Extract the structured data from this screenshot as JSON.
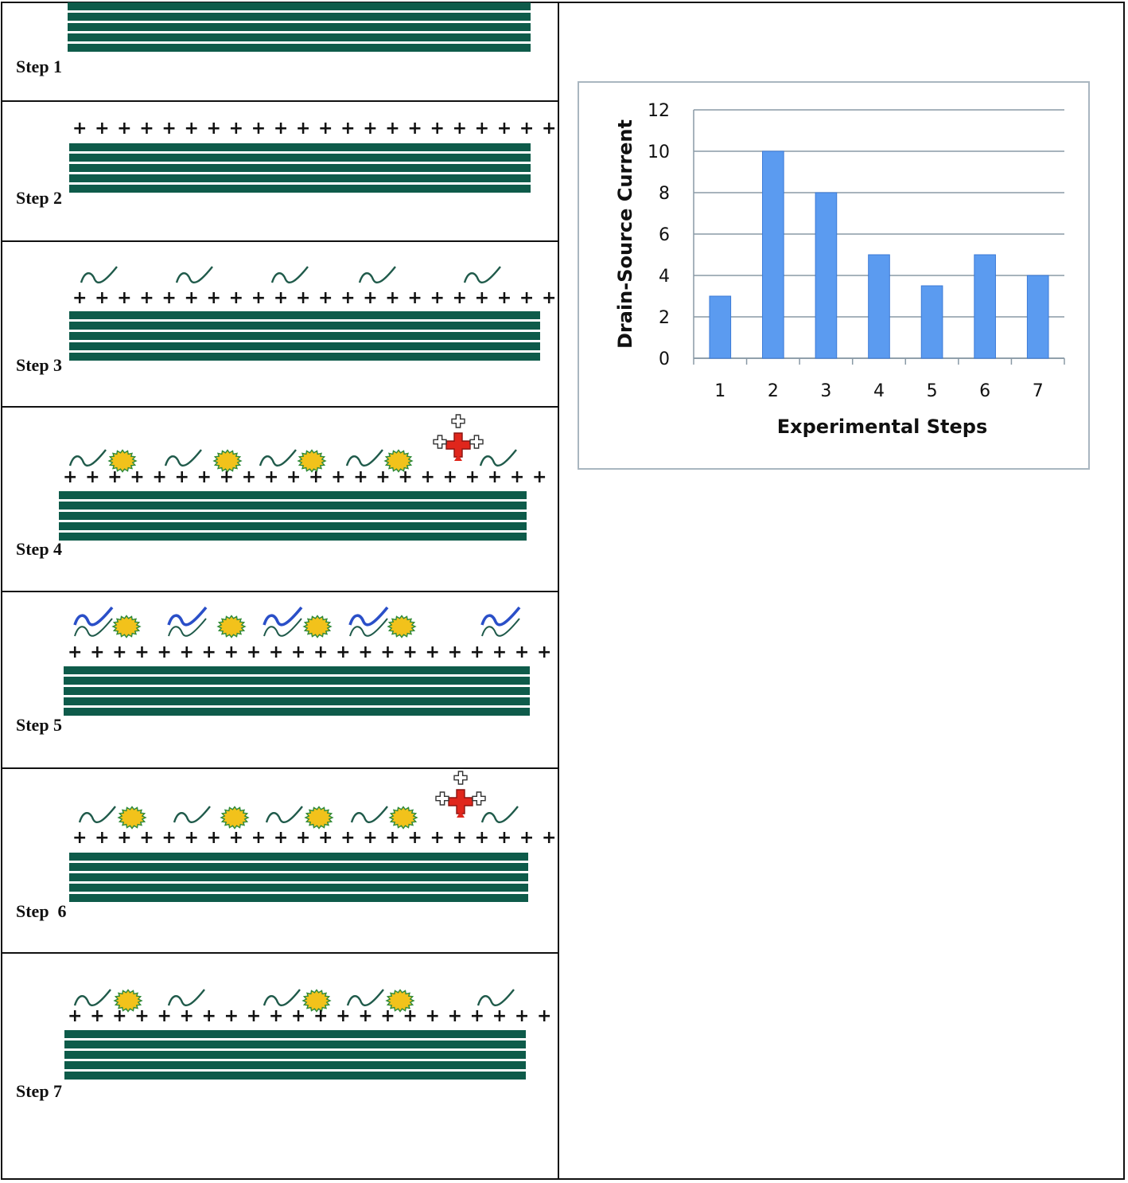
{
  "steps": [
    {
      "label": "Step 1",
      "layers": 5,
      "pluses": 0,
      "items": []
    },
    {
      "label": "Step 2",
      "layers": 5,
      "pluses": 22,
      "items": []
    },
    {
      "label": "Step 3",
      "layers": 5,
      "pluses": 22,
      "items": [
        "green-wave",
        "green-wave",
        "green-wave",
        "green-wave",
        "green-wave"
      ]
    },
    {
      "label": "Step 4",
      "layers": 5,
      "pluses": 22,
      "items": [
        "green-wave",
        "yellow-particle",
        "green-wave",
        "yellow-particle",
        "green-wave",
        "yellow-particle",
        "green-wave",
        "yellow-particle",
        "red-cross",
        "green-wave"
      ]
    },
    {
      "label": "Step 5",
      "layers": 5,
      "pluses": 22,
      "items": [
        "blue-double-wave",
        "yellow-particle",
        "blue-double-wave",
        "yellow-particle",
        "blue-double-wave",
        "yellow-particle",
        "blue-double-wave",
        "yellow-particle",
        "blue-double-wave"
      ]
    },
    {
      "label": "Step  6",
      "layers": 5,
      "pluses": 22,
      "items": [
        "green-wave",
        "yellow-particle",
        "green-wave",
        "yellow-particle",
        "green-wave",
        "yellow-particle",
        "green-wave",
        "yellow-particle",
        "red-cross",
        "green-wave"
      ]
    },
    {
      "label": "Step 7",
      "layers": 5,
      "pluses": 22,
      "items": [
        "green-wave",
        "yellow-particle",
        "green-wave",
        "green-wave",
        "yellow-particle",
        "green-wave",
        "yellow-particle",
        "green-wave"
      ]
    }
  ],
  "colors": {
    "layer": "#0e5b4a",
    "wave_green": "#1f5a4a",
    "wave_blue": "#2a4fc8",
    "particle": "#f2c21b",
    "particle_edge": "#2f8a3a",
    "cross_red": "#e0261c",
    "bar": "#5b9bf0",
    "bar_edge": "#3b7ad6",
    "grid": "#8a9aa6"
  },
  "chart_data": {
    "type": "bar",
    "categories": [
      "1",
      "2",
      "3",
      "4",
      "5",
      "6",
      "7"
    ],
    "values": [
      3,
      10,
      8,
      5,
      3.5,
      5,
      4
    ],
    "xlabel": "Experimental Steps",
    "ylabel": "Drain-Source Current",
    "ylim": [
      0,
      12
    ],
    "yticks": [
      0,
      2,
      4,
      6,
      8,
      10,
      12
    ],
    "grid": true
  }
}
